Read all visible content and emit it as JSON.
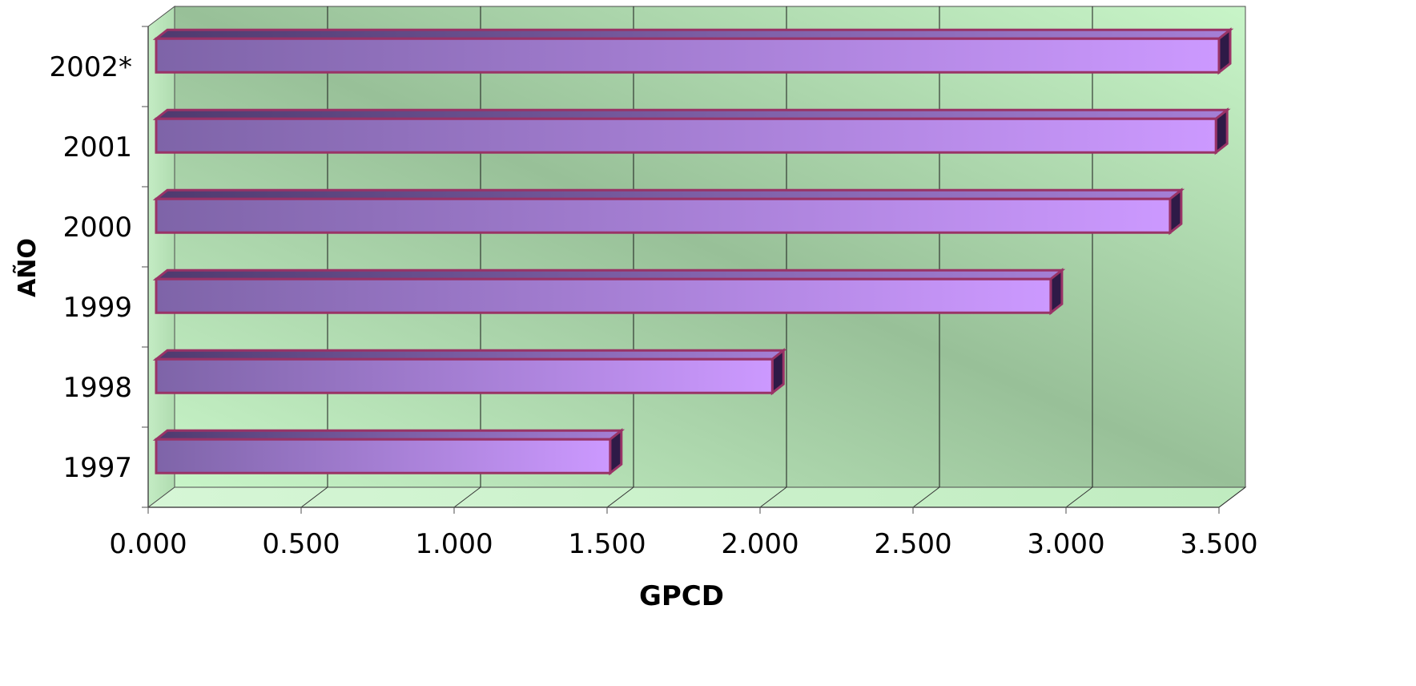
{
  "chart_data": {
    "type": "bar",
    "orientation": "horizontal",
    "style": "3d",
    "title": "",
    "xlabel": "GPCD",
    "ylabel": "AÑO",
    "categories": [
      "1997",
      "1998",
      "1999",
      "2000",
      "2001",
      "2002*"
    ],
    "values": [
      1.51,
      2.04,
      2.95,
      3.34,
      3.49,
      3.5
    ],
    "xlim": [
      0,
      3.5
    ],
    "xticks": [
      "0.000",
      "0.500",
      "1.000",
      "1.500",
      "2.000",
      "2.500",
      "3.000",
      "3.500"
    ],
    "grid": true,
    "legend": "none",
    "colors": {
      "bar_dark": "#7e64a8",
      "bar_light": "#cc99ff",
      "bar_outline": "#993366",
      "bar_end": "#2e1a47",
      "wall_light": "#c8f5c8",
      "wall_dark": "#98c098",
      "gridline": "#1a1a1a"
    }
  }
}
